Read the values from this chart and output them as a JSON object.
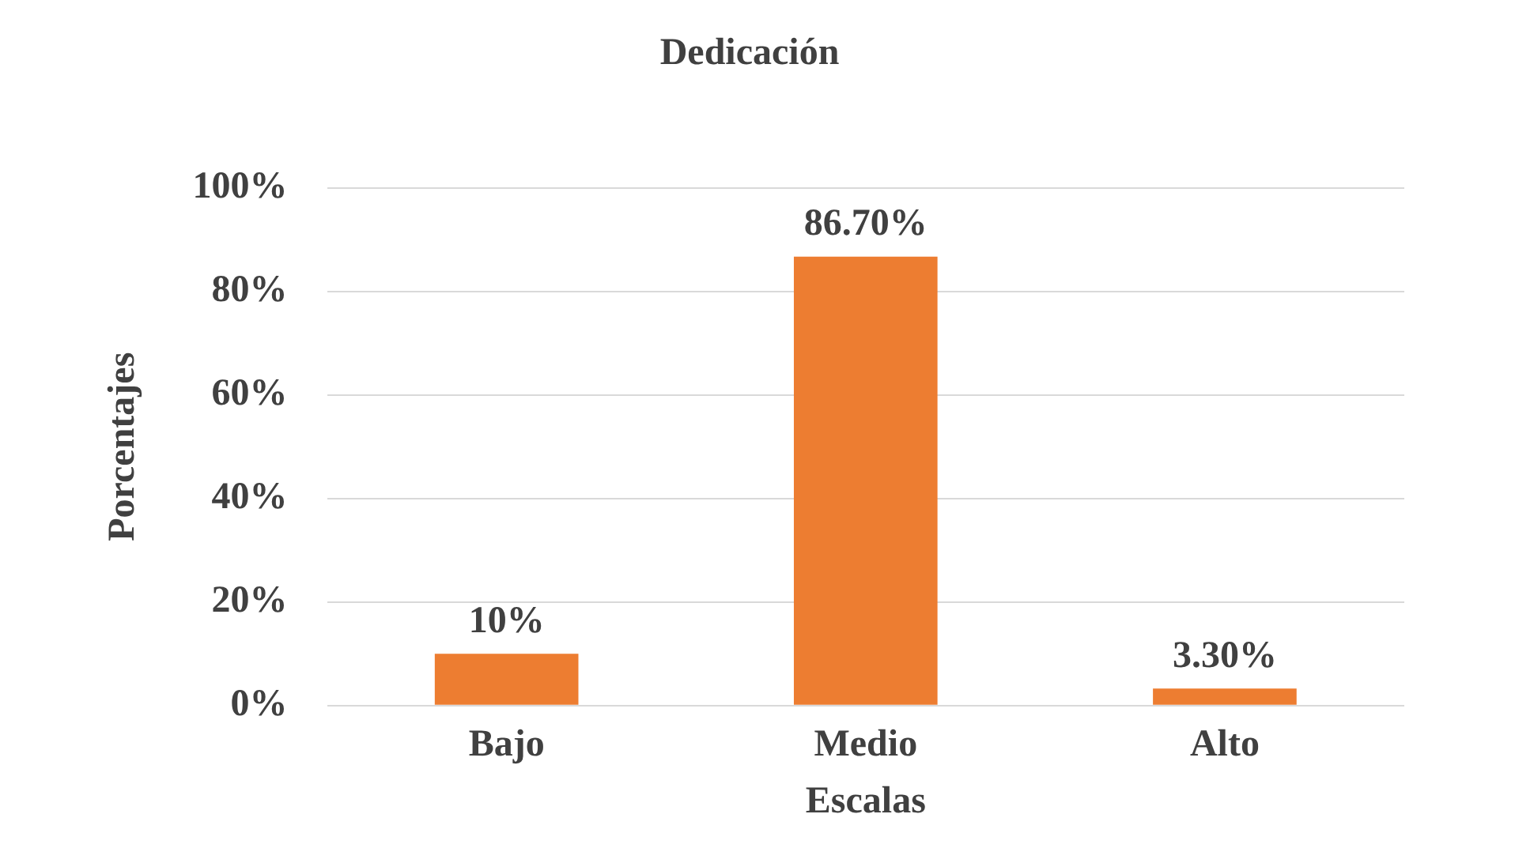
{
  "chart_data": {
    "type": "bar",
    "title": "Dedicación",
    "xlabel": "Escalas",
    "ylabel": "Porcentajes",
    "categories": [
      "Bajo",
      "Medio",
      "Alto"
    ],
    "values": [
      10,
      86.7,
      3.3
    ],
    "color": "#ed7d31",
    "value_labels": [
      "10%",
      "86.70%",
      "3.30%"
    ],
    "ylim": [
      0,
      100
    ],
    "yticks": [
      {
        "value": 0,
        "label": "0%"
      },
      {
        "value": 20,
        "label": "20%"
      },
      {
        "value": 40,
        "label": "40%"
      },
      {
        "value": 60,
        "label": "60%"
      },
      {
        "value": 80,
        "label": "80%"
      },
      {
        "value": 100,
        "label": "100%"
      }
    ],
    "grid": "y"
  }
}
